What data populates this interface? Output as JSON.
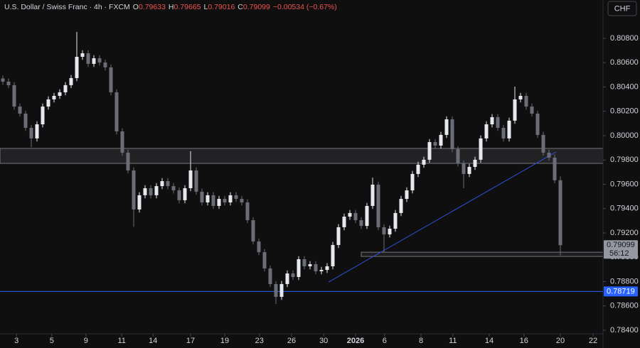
{
  "chart_data": {
    "type": "candlestick",
    "title": "U.S. Dollar / Swiss Franc · 4h · FXCM",
    "header": {
      "open_label": "O",
      "open": 0.79633,
      "high_label": "H",
      "high": 0.79665,
      "low_label": "L",
      "low": 0.79016,
      "close_label": "C",
      "close": 0.79099,
      "change": "−0.00534 (−0.67%)"
    },
    "currency": "CHF",
    "up_color": "#e6e8ee",
    "down_color": "#6a6d78",
    "xlim": [
      -0.5,
      105.5
    ],
    "xticks": [
      {
        "value": 2.4,
        "label": "3"
      },
      {
        "value": 8.6,
        "label": "5"
      },
      {
        "value": 14.6,
        "label": "9"
      },
      {
        "value": 20.9,
        "label": "11"
      },
      {
        "value": 26.4,
        "label": "14"
      },
      {
        "value": 33,
        "label": "17"
      },
      {
        "value": 39,
        "label": "19"
      },
      {
        "value": 45.1,
        "label": "23"
      },
      {
        "value": 50.75,
        "label": "26"
      },
      {
        "value": 56.4,
        "label": "30"
      },
      {
        "value": 62,
        "label": "2026"
      },
      {
        "value": 67.1,
        "label": "6"
      },
      {
        "value": 73.5,
        "label": "8"
      },
      {
        "value": 79.1,
        "label": "11"
      },
      {
        "value": 85.5,
        "label": "14"
      },
      {
        "value": 91.6,
        "label": "16"
      },
      {
        "value": 98,
        "label": "20"
      },
      {
        "value": 103.75,
        "label": "22"
      }
    ],
    "ylim": [
      0.78371,
      0.81115
    ],
    "yticks": [
      {
        "value": 0.784,
        "label": "0.78400"
      },
      {
        "value": 0.786,
        "label": "0.78600"
      },
      {
        "value": 0.788,
        "label": "0.78800"
      },
      {
        "value": 0.79,
        "label": "0.79000"
      },
      {
        "value": 0.792,
        "label": "0.79200"
      },
      {
        "value": 0.794,
        "label": "0.79400"
      },
      {
        "value": 0.796,
        "label": "0.79600"
      },
      {
        "value": 0.798,
        "label": "0.79800"
      },
      {
        "value": 0.8,
        "label": "0.80000"
      },
      {
        "value": 0.802,
        "label": "0.80200"
      },
      {
        "value": 0.804,
        "label": "0.80400"
      },
      {
        "value": 0.806,
        "label": "0.80600"
      },
      {
        "value": 0.808,
        "label": "0.80800"
      }
    ],
    "open": [
      0.8047,
      0.80444,
      0.80415,
      0.80239,
      0.80181,
      0.80064,
      0.79977,
      0.80093,
      0.80239,
      0.80298,
      0.80327,
      0.80356,
      0.80415,
      0.80473,
      0.80648,
      0.80677,
      0.8059,
      0.80636,
      0.80601,
      0.80561,
      0.80356,
      0.80035,
      0.7986,
      0.79714,
      0.79393,
      0.7951,
      0.79568,
      0.7951,
      0.79585,
      0.79626,
      0.79585,
      0.7955,
      0.79469,
      0.79568,
      0.79714,
      0.79539,
      0.79451,
      0.7951,
      0.79422,
      0.7948,
      0.79451,
      0.7951,
      0.7948,
      0.79451,
      0.79305,
      0.7913,
      0.79042,
      0.78908,
      0.7878,
      0.78675,
      0.7878,
      0.78867,
      0.78838,
      0.78984,
      0.78926,
      0.78943,
      0.78885,
      0.78896,
      0.78926,
      0.79101,
      0.79247,
      0.79334,
      0.79364,
      0.79305,
      0.79258,
      0.79422,
      0.79597,
      0.79247,
      0.79188,
      0.79235,
      0.79364,
      0.7948,
      0.7955,
      0.79685,
      0.79761,
      0.79802,
      0.79947,
      0.79918,
      0.80006,
      0.80134,
      0.79889,
      0.79772,
      0.79685,
      0.79743,
      0.79802,
      0.79977,
      0.80093,
      0.80152,
      0.80064,
      0.79977,
      0.80123,
      0.80298,
      0.80327,
      0.80239,
      0.80181,
      0.80006,
      0.7986,
      0.79819,
      0.79633
    ],
    "high": [
      0.80495,
      0.80469,
      0.8044,
      0.80264,
      0.80206,
      0.80089,
      0.80118,
      0.80264,
      0.80323,
      0.80352,
      0.80381,
      0.8044,
      0.80498,
      0.80853,
      0.80702,
      0.80702,
      0.80661,
      0.80661,
      0.80626,
      0.80586,
      0.80381,
      0.8006,
      0.79885,
      0.79739,
      0.79535,
      0.79593,
      0.79593,
      0.7961,
      0.79651,
      0.79651,
      0.7961,
      0.79575,
      0.79593,
      0.79872,
      0.79739,
      0.79564,
      0.79535,
      0.79535,
      0.79505,
      0.79505,
      0.79535,
      0.79535,
      0.79505,
      0.79476,
      0.7933,
      0.79155,
      0.79067,
      0.78933,
      0.78805,
      0.78805,
      0.78892,
      0.78892,
      0.79009,
      0.79009,
      0.78968,
      0.78968,
      0.78921,
      0.78951,
      0.79126,
      0.79272,
      0.79359,
      0.79389,
      0.79389,
      0.7933,
      0.79447,
      0.79655,
      0.79622,
      0.79272,
      0.7926,
      0.79389,
      0.79505,
      0.79575,
      0.7971,
      0.79786,
      0.79827,
      0.79972,
      0.79972,
      0.80031,
      0.80159,
      0.80159,
      0.79914,
      0.79797,
      0.79768,
      0.79827,
      0.80002,
      0.80118,
      0.80177,
      0.80177,
      0.80089,
      0.80148,
      0.80403,
      0.80352,
      0.80352,
      0.80264,
      0.80206,
      0.80031,
      0.79885,
      0.79844,
      0.79665
    ],
    "low": [
      0.80419,
      0.8039,
      0.80214,
      0.80156,
      0.80039,
      0.79905,
      0.79952,
      0.80068,
      0.80214,
      0.80273,
      0.80302,
      0.80331,
      0.8039,
      0.80448,
      0.80623,
      0.80565,
      0.80565,
      0.80576,
      0.80536,
      0.80331,
      0.8001,
      0.79835,
      0.79689,
      0.7925,
      0.79368,
      0.79485,
      0.79485,
      0.79485,
      0.7956,
      0.7956,
      0.79525,
      0.79444,
      0.79444,
      0.79543,
      0.79514,
      0.79426,
      0.79426,
      0.79397,
      0.79397,
      0.79426,
      0.79426,
      0.79455,
      0.79426,
      0.7928,
      0.79105,
      0.79017,
      0.78883,
      0.78755,
      0.78616,
      0.7865,
      0.78755,
      0.78813,
      0.78813,
      0.78901,
      0.78901,
      0.7886,
      0.7886,
      0.78871,
      0.78901,
      0.79076,
      0.79222,
      0.79309,
      0.7928,
      0.79233,
      0.79233,
      0.79397,
      0.79222,
      0.79042,
      0.79163,
      0.7921,
      0.79339,
      0.79455,
      0.79525,
      0.7966,
      0.79736,
      0.79777,
      0.79893,
      0.79893,
      0.79981,
      0.79864,
      0.79747,
      0.79568,
      0.7966,
      0.79718,
      0.79777,
      0.79952,
      0.80068,
      0.80039,
      0.79952,
      0.79952,
      0.80098,
      0.80273,
      0.80214,
      0.80156,
      0.79981,
      0.79835,
      0.79794,
      0.79608,
      0.79016
    ],
    "close": [
      0.80444,
      0.80415,
      0.80239,
      0.80181,
      0.80064,
      0.79977,
      0.80093,
      0.80239,
      0.80298,
      0.80327,
      0.80356,
      0.80415,
      0.80473,
      0.80648,
      0.80677,
      0.8059,
      0.80636,
      0.80601,
      0.80561,
      0.80356,
      0.80035,
      0.7986,
      0.79714,
      0.79393,
      0.7951,
      0.79568,
      0.7951,
      0.79585,
      0.79626,
      0.79585,
      0.7955,
      0.79469,
      0.79568,
      0.79714,
      0.79539,
      0.79451,
      0.7951,
      0.79422,
      0.7948,
      0.79451,
      0.7951,
      0.7948,
      0.79451,
      0.79305,
      0.7913,
      0.79042,
      0.78908,
      0.7878,
      0.78675,
      0.7878,
      0.78867,
      0.78838,
      0.78984,
      0.78926,
      0.78943,
      0.78885,
      0.78896,
      0.78926,
      0.79101,
      0.79247,
      0.79334,
      0.79364,
      0.79305,
      0.79258,
      0.79422,
      0.79597,
      0.79247,
      0.79188,
      0.79235,
      0.79364,
      0.7948,
      0.7955,
      0.79685,
      0.79761,
      0.79802,
      0.79947,
      0.79918,
      0.80006,
      0.80134,
      0.79889,
      0.79772,
      0.79685,
      0.79743,
      0.79802,
      0.79977,
      0.80093,
      0.80152,
      0.80064,
      0.79977,
      0.80123,
      0.80298,
      0.80327,
      0.80239,
      0.80181,
      0.80006,
      0.7986,
      0.79819,
      0.79633,
      0.79099
    ],
    "resistance_zone": {
      "from": 0.79772,
      "to": 0.79895
    },
    "support_zone": {
      "from": 0.79007,
      "to": 0.79042,
      "start": 63
    },
    "trendline": {
      "x": [
        57.25,
        97.25
      ],
      "y": [
        0.78796,
        0.79866
      ],
      "color": "#2f4fd8"
    },
    "level": {
      "value": 0.78719,
      "color": "#2962ff"
    },
    "last_price": 0.79099,
    "countdown": "56:12"
  }
}
